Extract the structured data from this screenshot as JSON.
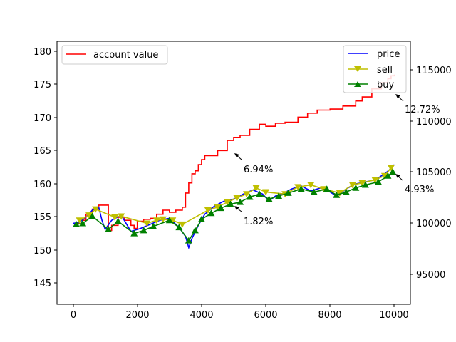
{
  "chart_data": {
    "type": "line",
    "title": "",
    "xlabel": "",
    "ylabel": "",
    "xlim": [
      -500,
      10500
    ],
    "ylim_left": [
      142,
      182
    ],
    "ylim_right": [
      92000,
      118000
    ],
    "x_ticks": [
      0,
      2000,
      4000,
      6000,
      8000,
      10000
    ],
    "x_tick_labels": [
      "0",
      "2000",
      "4000",
      "6000",
      "8000",
      "10000"
    ],
    "y_left_ticks": [
      145,
      150,
      155,
      160,
      165,
      170,
      175,
      180
    ],
    "y_left_tick_labels": [
      "145",
      "150",
      "155",
      "160",
      "165",
      "170",
      "175",
      "180"
    ],
    "y_right_ticks": [
      95000,
      100000,
      105000,
      110000,
      115000
    ],
    "y_right_tick_labels": [
      "95000",
      "100000",
      "105000",
      "110000",
      "115000"
    ],
    "grid": false,
    "legend_left": {
      "placement": "upper-left",
      "entries": [
        {
          "name": "account value",
          "color": "#ff0000",
          "marker": "line"
        }
      ]
    },
    "legend_right": {
      "placement": "upper-right",
      "entries": [
        {
          "name": "price",
          "color": "#0000ff",
          "marker": "line"
        },
        {
          "name": "sell",
          "color": "#bfbf00",
          "marker": "triangle-down"
        },
        {
          "name": "buy",
          "color": "#008000",
          "marker": "triangle-up"
        }
      ]
    },
    "series": [
      {
        "name": "account value",
        "axis": "right",
        "color": "#ff0000",
        "x": [
          0,
          200,
          400,
          600,
          800,
          850,
          900,
          1000,
          1100,
          1200,
          1400,
          1600,
          1800,
          1900,
          2000,
          2200,
          2400,
          2600,
          2800,
          3000,
          3200,
          3400,
          3500,
          3600,
          3700,
          3800,
          3900,
          4000,
          4100,
          4300,
          4500,
          4800,
          5000,
          5200,
          5500,
          5800,
          6000,
          6300,
          6600,
          7000,
          7300,
          7600,
          8000,
          8400,
          8800,
          9000,
          9300,
          9600,
          9800,
          9900,
          10000
        ],
        "y": [
          100000,
          100300,
          100900,
          101400,
          101800,
          101800,
          101800,
          101800,
          99300,
          99800,
          100600,
          100300,
          99800,
          99500,
          100200,
          100400,
          100500,
          100900,
          101300,
          101100,
          101300,
          101600,
          103000,
          104000,
          104900,
          105200,
          105800,
          106300,
          106700,
          106700,
          107200,
          108200,
          108500,
          108700,
          109300,
          109800,
          109600,
          109900,
          110000,
          110500,
          110900,
          111200,
          111300,
          111600,
          112100,
          112500,
          113300,
          113900,
          114300,
          114600,
          114700
        ]
      },
      {
        "name": "price",
        "axis": "right",
        "color": "#0000ff",
        "x": [
          0,
          200,
          400,
          600,
          800,
          900,
          1000,
          1200,
          1500,
          1800,
          2100,
          2400,
          2700,
          3000,
          3300,
          3500,
          3600,
          3700,
          3900,
          4100,
          4400,
          4700,
          5000,
          5300,
          5600,
          5900,
          6100,
          6300,
          6500,
          6800,
          7100,
          7400,
          7700,
          8000,
          8200,
          8500,
          8800,
          9100,
          9400,
          9700,
          9850,
          10000
        ],
        "y": [
          100000,
          100100,
          100600,
          101300,
          101600,
          100300,
          99400,
          100300,
          100800,
          99200,
          99500,
          99900,
          100300,
          100500,
          99600,
          98700,
          97600,
          98500,
          99800,
          100900,
          101700,
          102200,
          102400,
          102900,
          103300,
          102900,
          102200,
          102700,
          102900,
          103400,
          103700,
          103200,
          103500,
          103100,
          102700,
          103400,
          103900,
          104100,
          104300,
          104900,
          105300,
          105800
        ]
      },
      {
        "name": "sell",
        "axis": "right",
        "color": "#bfbf00",
        "x": [
          200,
          500,
          700,
          1300,
          1500,
          2300,
          2600,
          2800,
          3100,
          3400,
          4200,
          4500,
          4800,
          5100,
          5400,
          5700,
          6000,
          6600,
          7000,
          7400,
          7800,
          8300,
          8700,
          9000,
          9400,
          9700,
          9900
        ],
        "y": [
          100300,
          100800,
          101400,
          100600,
          100700,
          100000,
          100300,
          100400,
          100300,
          99900,
          101300,
          101600,
          102100,
          102500,
          102900,
          103500,
          103100,
          102900,
          103600,
          103800,
          103400,
          103000,
          103800,
          104000,
          104300,
          104700,
          105500
        ]
      },
      {
        "name": "buy",
        "axis": "right",
        "color": "#008000",
        "x": [
          100,
          300,
          600,
          1100,
          1400,
          1900,
          2200,
          2500,
          3000,
          3300,
          3600,
          3800,
          4000,
          4300,
          4600,
          4900,
          5200,
          5500,
          5800,
          6100,
          6400,
          6700,
          7100,
          7500,
          7900,
          8200,
          8500,
          8800,
          9100,
          9500,
          9800,
          9950
        ],
        "y": [
          99900,
          100000,
          100700,
          99400,
          100200,
          99000,
          99300,
          99700,
          100300,
          99600,
          98300,
          99300,
          100400,
          101000,
          101500,
          101900,
          102100,
          102600,
          102900,
          102400,
          102700,
          103000,
          103400,
          103100,
          103400,
          102800,
          103100,
          103500,
          103800,
          104100,
          104700,
          105100
        ]
      }
    ],
    "annotations": [
      {
        "text": "12.72%",
        "x": 10000,
        "y": 114100
      },
      {
        "text": "6.94%",
        "x": 5000,
        "y": 107100
      },
      {
        "text": "4.93%",
        "x": 10000,
        "y": 104900
      },
      {
        "text": "1.82%",
        "x": 5000,
        "y": 101800
      }
    ]
  }
}
